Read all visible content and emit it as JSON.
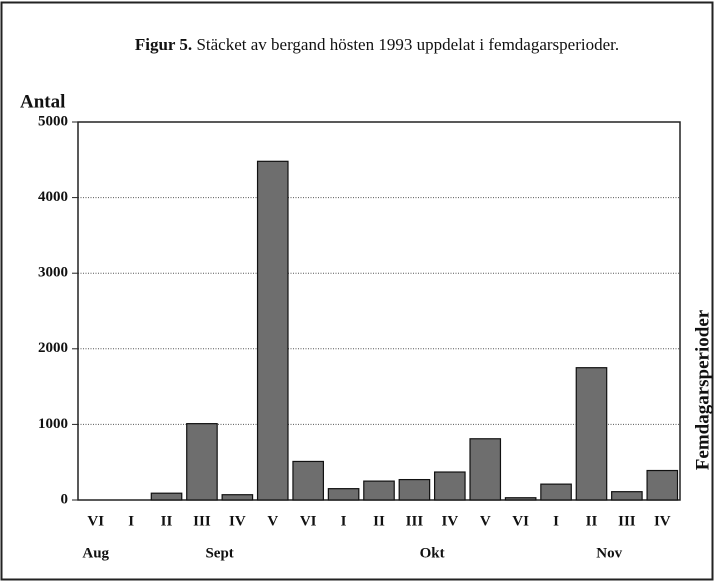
{
  "chart_data": {
    "type": "bar",
    "title_prefix": "Figur 5.",
    "title": "Stäcket av bergand hösten 1993 uppdelat i femdagarsperioder.",
    "ylabel": "Antal",
    "xlabel": "Femdagarsperioder",
    "categories": [
      "VI",
      "I",
      "II",
      "III",
      "IV",
      "V",
      "VI",
      "I",
      "II",
      "III",
      "IV",
      "V",
      "VI",
      "I",
      "II",
      "III",
      "IV"
    ],
    "groups": [
      {
        "name": "Aug",
        "count": 1
      },
      {
        "name": "Sept",
        "count": 6
      },
      {
        "name": "Okt",
        "count": 6
      },
      {
        "name": "Nov",
        "count": 4
      }
    ],
    "values": [
      0,
      0,
      90,
      1010,
      70,
      4480,
      510,
      150,
      250,
      270,
      370,
      810,
      30,
      210,
      1750,
      110,
      390
    ],
    "color": "#6e6e6e",
    "ylim": [
      0,
      5000
    ],
    "yticks": [
      0,
      1000,
      2000,
      3000,
      4000,
      5000
    ],
    "grid": true
  }
}
